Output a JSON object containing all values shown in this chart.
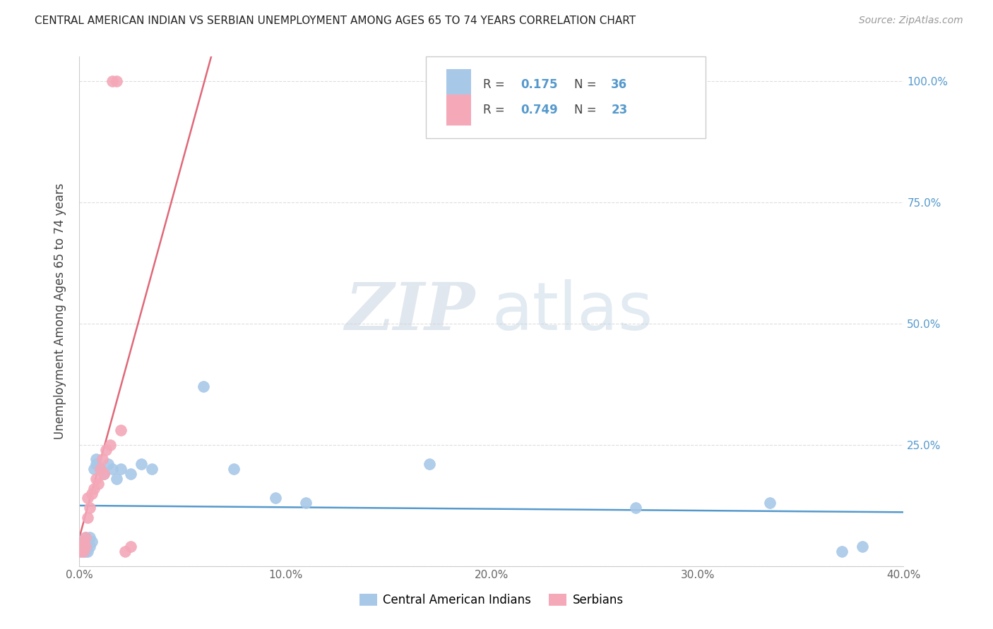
{
  "title": "CENTRAL AMERICAN INDIAN VS SERBIAN UNEMPLOYMENT AMONG AGES 65 TO 74 YEARS CORRELATION CHART",
  "source": "Source: ZipAtlas.com",
  "ylabel": "Unemployment Among Ages 65 to 74 years",
  "xlim": [
    0.0,
    0.4
  ],
  "ylim": [
    0.0,
    1.05
  ],
  "x_ticks": [
    0.0,
    0.1,
    0.2,
    0.3,
    0.4
  ],
  "x_tick_labels": [
    "0.0%",
    "10.0%",
    "20.0%",
    "30.0%",
    "40.0%"
  ],
  "y_ticks": [
    0.0,
    0.25,
    0.5,
    0.75,
    1.0
  ],
  "y_tick_labels_right": [
    "",
    "25.0%",
    "50.0%",
    "75.0%",
    "100.0%"
  ],
  "blue_R": 0.175,
  "blue_N": 36,
  "pink_R": 0.749,
  "pink_N": 23,
  "blue_color": "#a8c8e8",
  "pink_color": "#f4a8b8",
  "blue_line_color": "#5599cc",
  "pink_line_color": "#e06878",
  "legend_label_blue": "Central American Indians",
  "legend_label_pink": "Serbians",
  "watermark_zip": "ZIP",
  "watermark_atlas": "atlas",
  "blue_x": [
    0.0,
    0.001,
    0.001,
    0.001,
    0.002,
    0.002,
    0.002,
    0.003,
    0.003,
    0.003,
    0.004,
    0.004,
    0.005,
    0.005,
    0.006,
    0.007,
    0.008,
    0.008,
    0.01,
    0.012,
    0.014,
    0.016,
    0.018,
    0.02,
    0.025,
    0.03,
    0.035,
    0.06,
    0.075,
    0.095,
    0.11,
    0.17,
    0.27,
    0.335,
    0.37,
    0.38
  ],
  "blue_y": [
    0.04,
    0.03,
    0.04,
    0.05,
    0.03,
    0.04,
    0.05,
    0.03,
    0.04,
    0.06,
    0.03,
    0.05,
    0.04,
    0.06,
    0.05,
    0.2,
    0.21,
    0.22,
    0.2,
    0.19,
    0.21,
    0.2,
    0.18,
    0.2,
    0.19,
    0.21,
    0.2,
    0.37,
    0.2,
    0.14,
    0.13,
    0.21,
    0.12,
    0.13,
    0.03,
    0.04
  ],
  "pink_x": [
    0.0,
    0.001,
    0.002,
    0.002,
    0.003,
    0.003,
    0.004,
    0.004,
    0.005,
    0.006,
    0.007,
    0.008,
    0.009,
    0.01,
    0.011,
    0.012,
    0.013,
    0.015,
    0.016,
    0.018,
    0.02,
    0.022,
    0.025
  ],
  "pink_y": [
    0.03,
    0.04,
    0.03,
    0.05,
    0.04,
    0.06,
    0.1,
    0.14,
    0.12,
    0.15,
    0.16,
    0.18,
    0.17,
    0.2,
    0.22,
    0.19,
    0.24,
    0.25,
    1.0,
    1.0,
    0.28,
    0.03,
    0.04
  ]
}
